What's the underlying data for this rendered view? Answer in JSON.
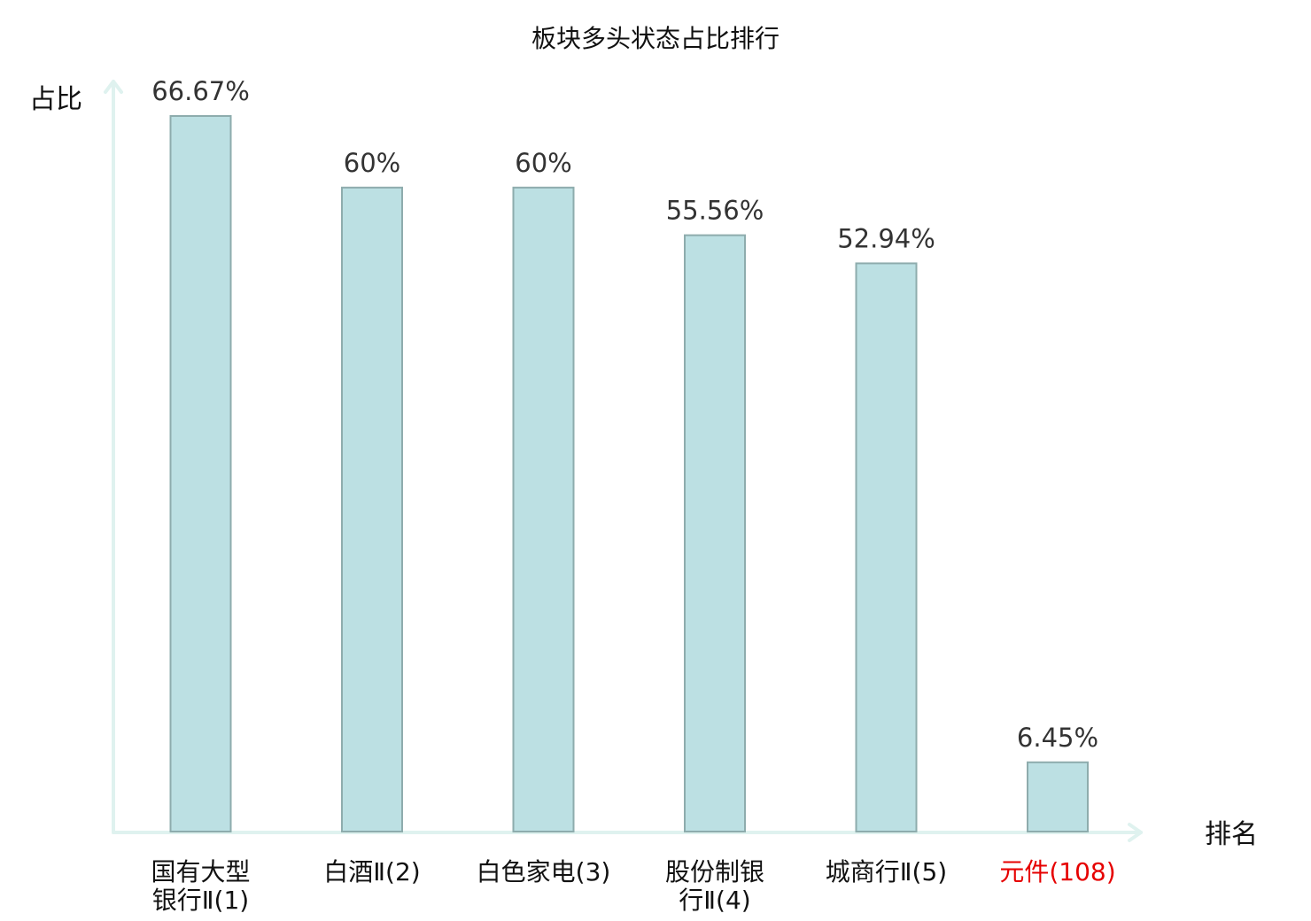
{
  "chart_data": {
    "type": "bar",
    "title": "板块多头状态占比排行",
    "ylabel": "占比",
    "xlabel": "排名",
    "categories": [
      [
        "国有大型",
        "银行Ⅱ(1)"
      ],
      [
        "白酒Ⅱ(2)"
      ],
      [
        "白色家电(3)"
      ],
      [
        "股份制银",
        "行Ⅱ(4)"
      ],
      [
        "城商行Ⅱ(5)"
      ],
      [
        "元件(108)"
      ]
    ],
    "values": [
      66.67,
      60,
      60,
      55.56,
      52.94,
      6.45
    ],
    "value_labels": [
      "66.67%",
      "60%",
      "60%",
      "55.56%",
      "52.94%",
      "6.45%"
    ],
    "highlight_index": 5,
    "ylim": [
      0,
      70
    ],
    "grid": false,
    "legend": "none",
    "colors": {
      "bar_fill": "#bce0e3",
      "bar_stroke": "#8eacad",
      "axis": "#dff2ef",
      "label": "#111111",
      "value_text": "#333333",
      "highlight": "#e60000"
    }
  }
}
